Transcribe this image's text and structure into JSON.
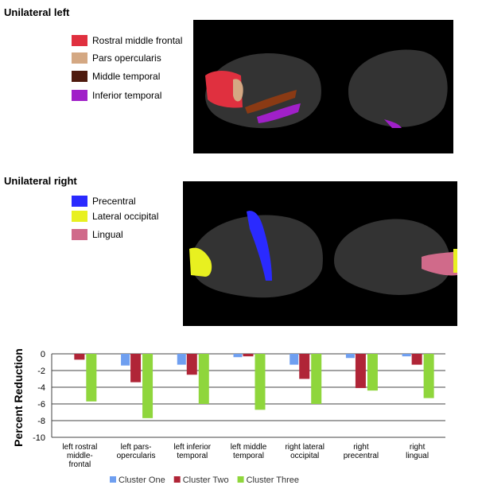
{
  "panels": [
    {
      "title": "Unilateral left",
      "legend": [
        {
          "label": "Rostral middle frontal",
          "color": "#e0303f"
        },
        {
          "label": "Pars opercularis",
          "color": "#d4a883"
        },
        {
          "label": "Middle temporal",
          "color": "#4e1a0e"
        },
        {
          "label": "Inferior temporal",
          "color": "#a020c8"
        }
      ]
    },
    {
      "title": "Unilateral right",
      "legend": [
        {
          "label": "Precentral",
          "color": "#2a2aff"
        },
        {
          "label": "Lateral occipital",
          "color": "#e8f020"
        },
        {
          "label": "Lingual",
          "color": "#d06a8a"
        }
      ]
    }
  ],
  "chart_data": {
    "type": "bar",
    "ylabel": "Percent Reduction",
    "categories": [
      "left rostral\nmiddle-\nfrontal",
      "left pars-\nopercularis",
      "left inferior\ntemporal",
      "left middle\ntemporal",
      "right lateral\noccipital",
      "right\nprecentral",
      "right\nlingual"
    ],
    "series": [
      {
        "name": "Cluster One",
        "color": "#6f9ff0",
        "values": [
          0,
          -1.4,
          -1.3,
          -0.4,
          -1.3,
          -0.5,
          -0.3
        ]
      },
      {
        "name": "Cluster Two",
        "color": "#b02537",
        "values": [
          -0.7,
          -3.4,
          -2.5,
          -0.3,
          -3.0,
          -4.1,
          -1.3
        ]
      },
      {
        "name": "Cluster Three",
        "color": "#8fd63c",
        "values": [
          -5.7,
          -7.7,
          -6.0,
          -6.7,
          -6.0,
          -4.4,
          -5.3
        ]
      }
    ],
    "ylim": [
      -10,
      0
    ],
    "yticks": [
      0,
      -2,
      -4,
      -6,
      -8,
      -10
    ],
    "grid": true
  }
}
